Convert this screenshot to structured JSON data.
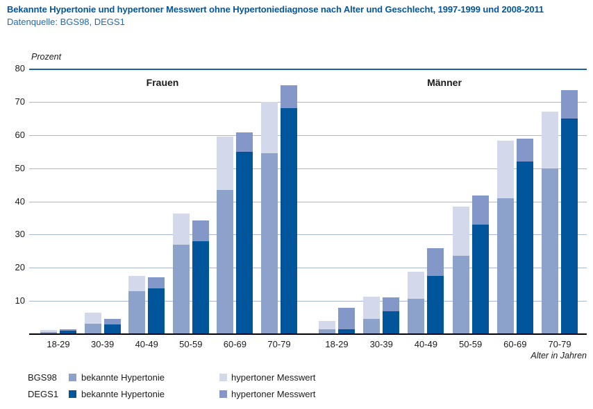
{
  "header": {
    "title": "Bekannte Hypertonie und hypertoner Messwert ohne Hypertoniediagnose nach Alter und Geschlecht, 1997-1999 und 2008-2011",
    "source": "Datenquelle: BGS98, DEGS1"
  },
  "chart_data": {
    "type": "bar",
    "stacked": true,
    "ylabel": "Prozent",
    "xlabel": "Alter in Jahren",
    "ylim": [
      0,
      80
    ],
    "ytick_step": 10,
    "grid": true,
    "colors": {
      "bgs98_bekannte": "#8da2cb",
      "bgs98_messwert": "#d3d9ea",
      "degs1_bekannte": "#00559b",
      "degs1_messwert": "#8397c8"
    },
    "panels": [
      {
        "label": "Frauen",
        "categories": [
          "18-29",
          "30-39",
          "40-49",
          "50-59",
          "60-69",
          "70-79"
        ],
        "series": [
          {
            "survey": "BGS98",
            "segment": "bekannte Hypertonie",
            "color_key": "bgs98_bekannte",
            "values": [
              0.6,
              3.2,
              13.0,
              27.0,
              43.5,
              54.5
            ]
          },
          {
            "survey": "BGS98",
            "segment": "hypertoner Messwert",
            "color_key": "bgs98_messwert",
            "values": [
              0.6,
              3.2,
              4.6,
              9.4,
              16.0,
              15.5
            ]
          },
          {
            "survey": "DEGS1",
            "segment": "bekannte Hypertonie",
            "color_key": "degs1_bekannte",
            "values": [
              1.0,
              3.0,
              13.7,
              28.0,
              55.0,
              68.0
            ]
          },
          {
            "survey": "DEGS1",
            "segment": "hypertoner Messwert",
            "color_key": "degs1_messwert",
            "values": [
              0.5,
              1.6,
              3.4,
              6.3,
              5.7,
              7.0
            ]
          }
        ]
      },
      {
        "label": "Männer",
        "categories": [
          "18-29",
          "30-39",
          "40-49",
          "50-59",
          "60-69",
          "70-79"
        ],
        "series": [
          {
            "survey": "BGS98",
            "segment": "bekannte Hypertonie",
            "color_key": "bgs98_bekannte",
            "values": [
              1.5,
              4.5,
              10.6,
              23.7,
              41.0,
              50.0
            ]
          },
          {
            "survey": "BGS98",
            "segment": "hypertoner Messwert",
            "color_key": "bgs98_messwert",
            "values": [
              2.5,
              6.7,
              8.3,
              14.7,
              17.2,
              17.0
            ]
          },
          {
            "survey": "DEGS1",
            "segment": "bekannte Hypertonie",
            "color_key": "degs1_bekannte",
            "values": [
              1.5,
              7.0,
              17.5,
              33.0,
              52.0,
              65.0
            ]
          },
          {
            "survey": "DEGS1",
            "segment": "hypertoner Messwert",
            "color_key": "degs1_messwert",
            "values": [
              6.4,
              4.0,
              8.5,
              8.8,
              7.0,
              8.5
            ]
          }
        ]
      }
    ],
    "legend": [
      {
        "survey": "BGS98",
        "items": [
          {
            "label": "bekannte Hypertonie",
            "color_key": "bgs98_bekannte"
          },
          {
            "label": "hypertoner Messwert",
            "color_key": "bgs98_messwert"
          }
        ]
      },
      {
        "survey": "DEGS1",
        "items": [
          {
            "label": "bekannte Hypertonie",
            "color_key": "degs1_bekannte"
          },
          {
            "label": "hypertoner Messwert",
            "color_key": "degs1_messwert"
          }
        ]
      }
    ]
  }
}
